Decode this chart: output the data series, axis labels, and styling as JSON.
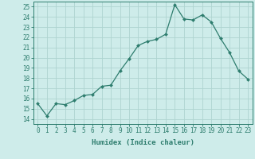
{
  "x": [
    0,
    1,
    2,
    3,
    4,
    5,
    6,
    7,
    8,
    9,
    10,
    11,
    12,
    13,
    14,
    15,
    16,
    17,
    18,
    19,
    20,
    21,
    22,
    23
  ],
  "y": [
    15.5,
    14.3,
    15.5,
    15.4,
    15.8,
    16.3,
    16.4,
    17.2,
    17.3,
    18.7,
    19.9,
    21.2,
    21.6,
    21.8,
    22.3,
    25.2,
    23.8,
    23.7,
    24.2,
    23.5,
    21.9,
    20.5,
    18.7,
    17.9
  ],
  "title": "",
  "xlabel": "Humidex (Indice chaleur)",
  "ylabel": "",
  "xlim": [
    -0.5,
    23.5
  ],
  "ylim": [
    13.5,
    25.5
  ],
  "yticks": [
    14,
    15,
    16,
    17,
    18,
    19,
    20,
    21,
    22,
    23,
    24,
    25
  ],
  "xticks": [
    0,
    1,
    2,
    3,
    4,
    5,
    6,
    7,
    8,
    9,
    10,
    11,
    12,
    13,
    14,
    15,
    16,
    17,
    18,
    19,
    20,
    21,
    22,
    23
  ],
  "line_color": "#2e7d6e",
  "marker_color": "#2e7d6e",
  "bg_color": "#ceecea",
  "grid_color": "#aed4d0",
  "label_fontsize": 6.5,
  "tick_fontsize": 5.5,
  "spine_color": "#2e7d6e"
}
